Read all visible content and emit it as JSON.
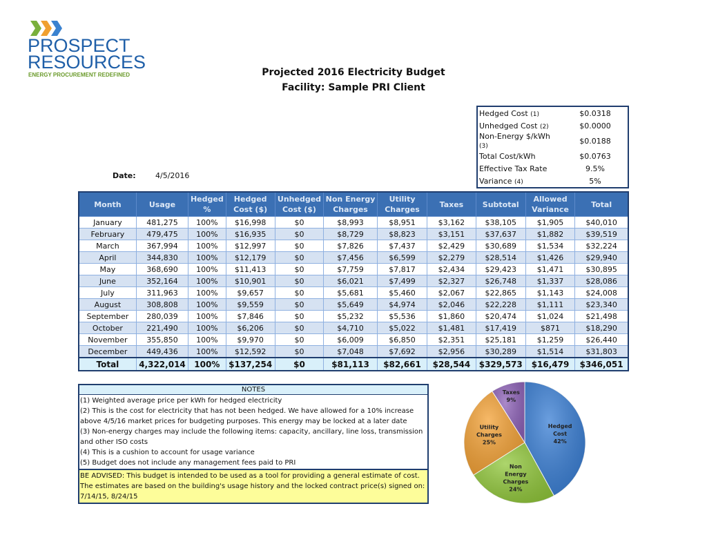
{
  "logo": {
    "line1": "PROSPECT",
    "line2": "RESOURCES",
    "tagline": "ENERGY PROCUREMENT REDEFINED",
    "chevron_colors": [
      "#7ab03c",
      "#f0a030",
      "#3a82d0"
    ]
  },
  "title": "Projected 2016 Electricity Budget",
  "facility": "Facility:  Sample PRI Client",
  "date": {
    "label": "Date:",
    "value": "4/5/2016"
  },
  "summary": [
    {
      "label": "Hedged Cost",
      "note": "(1)",
      "value": "$0.0318"
    },
    {
      "label": "Unhedged Cost",
      "note": "(2)",
      "value": "$0.0000"
    },
    {
      "label": "Non-Energy $/kWh",
      "note": "(3)",
      "value": "$0.0188"
    },
    {
      "label": "Total Cost/kWh",
      "note": "",
      "value": "$0.0763"
    },
    {
      "label": "Effective Tax Rate",
      "note": "",
      "value": "9.5%"
    },
    {
      "label": "Variance",
      "note": "(4)",
      "value": "5%"
    }
  ],
  "table": {
    "headers": [
      [
        "Month"
      ],
      [
        "Usage"
      ],
      [
        "Hedged",
        "%"
      ],
      [
        "Hedged",
        "Cost ($)"
      ],
      [
        "Unhedged",
        "Cost ($)"
      ],
      [
        "Non Energy",
        "Charges"
      ],
      [
        "Utility",
        "Charges"
      ],
      [
        "Taxes"
      ],
      [
        "Subtotal"
      ],
      [
        "Allowed",
        "Variance"
      ],
      [
        "Total"
      ]
    ],
    "rows": [
      [
        "January",
        "481,275",
        "100%",
        "$16,998",
        "$0",
        "$8,993",
        "$8,951",
        "$3,162",
        "$38,105",
        "$1,905",
        "$40,010"
      ],
      [
        "February",
        "479,475",
        "100%",
        "$16,935",
        "$0",
        "$8,729",
        "$8,823",
        "$3,151",
        "$37,637",
        "$1,882",
        "$39,519"
      ],
      [
        "March",
        "367,994",
        "100%",
        "$12,997",
        "$0",
        "$7,826",
        "$7,437",
        "$2,429",
        "$30,689",
        "$1,534",
        "$32,224"
      ],
      [
        "April",
        "344,830",
        "100%",
        "$12,179",
        "$0",
        "$7,456",
        "$6,599",
        "$2,279",
        "$28,514",
        "$1,426",
        "$29,940"
      ],
      [
        "May",
        "368,690",
        "100%",
        "$11,413",
        "$0",
        "$7,759",
        "$7,817",
        "$2,434",
        "$29,423",
        "$1,471",
        "$30,895"
      ],
      [
        "June",
        "352,164",
        "100%",
        "$10,901",
        "$0",
        "$6,021",
        "$7,499",
        "$2,327",
        "$26,748",
        "$1,337",
        "$28,086"
      ],
      [
        "July",
        "311,963",
        "100%",
        "$9,657",
        "$0",
        "$5,681",
        "$5,460",
        "$2,067",
        "$22,865",
        "$1,143",
        "$24,008"
      ],
      [
        "August",
        "308,808",
        "100%",
        "$9,559",
        "$0",
        "$5,649",
        "$4,974",
        "$2,046",
        "$22,228",
        "$1,111",
        "$23,340"
      ],
      [
        "September",
        "280,039",
        "100%",
        "$7,846",
        "$0",
        "$5,232",
        "$5,536",
        "$1,860",
        "$20,474",
        "$1,024",
        "$21,498"
      ],
      [
        "October",
        "221,490",
        "100%",
        "$6,206",
        "$0",
        "$4,710",
        "$5,022",
        "$1,481",
        "$17,419",
        "$871",
        "$18,290"
      ],
      [
        "November",
        "355,850",
        "100%",
        "$9,970",
        "$0",
        "$6,009",
        "$6,850",
        "$2,351",
        "$25,181",
        "$1,259",
        "$26,440"
      ],
      [
        "December",
        "449,436",
        "100%",
        "$12,592",
        "$0",
        "$7,048",
        "$7,692",
        "$2,956",
        "$30,289",
        "$1,514",
        "$31,803"
      ]
    ],
    "total": [
      "Total",
      "4,322,014",
      "100%",
      "$137,254",
      "$0",
      "$81,113",
      "$82,661",
      "$28,544",
      "$329,573",
      "$16,479",
      "$346,051"
    ]
  },
  "notes": {
    "header": "NOTES",
    "items": [
      "(1) Weighted average price per kWh for hedged electricity",
      "(2) This is the cost for electricity that has not been hedged.  We have allowed for a 10% increase above 4/5/16 market prices for budgeting purposes. This energy may be locked at a later date",
      "(3) Non-energy charges may include the following items: capacity, ancillary, line loss, transmission and other ISO costs",
      "(4) This is a cushion to account for usage variance",
      "(5) Budget does not include any management fees paid to PRI"
    ],
    "advisory": "BE ADVISED: This budget is intended to be used as a tool for providing a general estimate of cost. The estimates are based on the building's usage history and the locked contract price(s) signed on: 7/14/15, 8/24/15"
  },
  "chart_data": {
    "type": "pie",
    "start": "top",
    "direction": "clockwise",
    "slices": [
      {
        "label": [
          "Hedged",
          "Cost",
          "42%"
        ],
        "value": 42,
        "color": "#3a7fd5"
      },
      {
        "label": [
          "Non",
          "Energy",
          "Charges",
          "24%"
        ],
        "value": 24,
        "color": "#92c83c"
      },
      {
        "label": [
          "Utility",
          "Charges",
          "25%"
        ],
        "value": 25,
        "color": "#f4a236"
      },
      {
        "label": [
          "Taxes",
          "9%"
        ],
        "value": 9,
        "color": "#8e62b8"
      }
    ]
  }
}
